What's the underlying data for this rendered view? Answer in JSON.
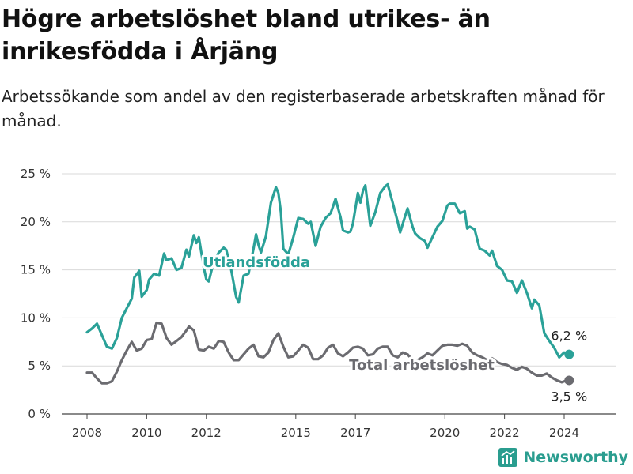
{
  "title": "Högre arbetslöshet bland utrikes- än inrikesfödda i Årjäng",
  "subtitle": "Arbetssökande som andel av den registerbaserade arbetskraften månad för månad.",
  "brand": {
    "name": "Newsworthy",
    "color": "#2a9d8f"
  },
  "chart_data": {
    "type": "line",
    "x_ticks": [
      "2008",
      "2010",
      "2012",
      "2015",
      "2017",
      "2020",
      "2022",
      "2024"
    ],
    "y_ticks": [
      "0 %",
      "5 %",
      "10 %",
      "15 %",
      "20 %",
      "25 %"
    ],
    "ylim": [
      0,
      25
    ],
    "grid": true,
    "series": [
      {
        "name": "Utlandsfödda",
        "color": "#2aa198",
        "end_label": "6,2 %",
        "points": [
          [
            "2008-01",
            8.5
          ],
          [
            "2008-03",
            8.9
          ],
          [
            "2008-05",
            9.4
          ],
          [
            "2008-07",
            8.2
          ],
          [
            "2008-09",
            7.0
          ],
          [
            "2008-11",
            6.8
          ],
          [
            "2009-01",
            7.9
          ],
          [
            "2009-03",
            10.0
          ],
          [
            "2009-05",
            11.0
          ],
          [
            "2009-07",
            12.0
          ],
          [
            "2009-08",
            14.2
          ],
          [
            "2009-10",
            14.9
          ],
          [
            "2009-11",
            12.2
          ],
          [
            "2010-01",
            12.9
          ],
          [
            "2010-02",
            14.0
          ],
          [
            "2010-04",
            14.6
          ],
          [
            "2010-06",
            14.4
          ],
          [
            "2010-08",
            16.7
          ],
          [
            "2010-09",
            16.0
          ],
          [
            "2010-11",
            16.2
          ],
          [
            "2011-01",
            15.0
          ],
          [
            "2011-03",
            15.2
          ],
          [
            "2011-05",
            17.1
          ],
          [
            "2011-06",
            16.4
          ],
          [
            "2011-08",
            18.6
          ],
          [
            "2011-09",
            17.8
          ],
          [
            "2011-10",
            18.4
          ],
          [
            "2011-12",
            15.2
          ],
          [
            "2012-01",
            14.0
          ],
          [
            "2012-02",
            13.8
          ],
          [
            "2012-04",
            15.9
          ],
          [
            "2012-06",
            16.8
          ],
          [
            "2012-08",
            17.3
          ],
          [
            "2012-09",
            17.1
          ],
          [
            "2012-11",
            15.0
          ],
          [
            "2013-01",
            12.2
          ],
          [
            "2013-02",
            11.6
          ],
          [
            "2013-04",
            14.4
          ],
          [
            "2013-06",
            14.6
          ],
          [
            "2013-08",
            17.2
          ],
          [
            "2013-09",
            18.7
          ],
          [
            "2013-10",
            17.6
          ],
          [
            "2013-11",
            16.8
          ],
          [
            "2014-01",
            18.5
          ],
          [
            "2014-03",
            22.0
          ],
          [
            "2014-05",
            23.6
          ],
          [
            "2014-06",
            23.0
          ],
          [
            "2014-07",
            21.0
          ],
          [
            "2014-08",
            17.2
          ],
          [
            "2014-10",
            16.6
          ],
          [
            "2014-12",
            18.4
          ],
          [
            "2015-02",
            20.4
          ],
          [
            "2015-04",
            20.3
          ],
          [
            "2015-06",
            19.8
          ],
          [
            "2015-07",
            20.0
          ],
          [
            "2015-09",
            17.5
          ],
          [
            "2015-11",
            19.5
          ],
          [
            "2016-01",
            20.4
          ],
          [
            "2016-03",
            20.9
          ],
          [
            "2016-04",
            21.6
          ],
          [
            "2016-05",
            22.4
          ],
          [
            "2016-07",
            20.5
          ],
          [
            "2016-08",
            19.1
          ],
          [
            "2016-10",
            18.9
          ],
          [
            "2016-11",
            19.0
          ],
          [
            "2016-12",
            19.8
          ],
          [
            "2017-02",
            23.0
          ],
          [
            "2017-03",
            22.0
          ],
          [
            "2017-04",
            23.2
          ],
          [
            "2017-05",
            23.8
          ],
          [
            "2017-07",
            19.6
          ],
          [
            "2017-09",
            21.0
          ],
          [
            "2017-11",
            23.0
          ],
          [
            "2018-01",
            23.7
          ],
          [
            "2018-02",
            23.9
          ],
          [
            "2018-04",
            22.0
          ],
          [
            "2018-06",
            20.0
          ],
          [
            "2018-07",
            18.9
          ],
          [
            "2018-09",
            20.6
          ],
          [
            "2018-10",
            21.4
          ],
          [
            "2018-12",
            19.5
          ],
          [
            "2019-01",
            18.8
          ],
          [
            "2019-03",
            18.3
          ],
          [
            "2019-05",
            18.0
          ],
          [
            "2019-06",
            17.3
          ],
          [
            "2019-08",
            18.4
          ],
          [
            "2019-10",
            19.5
          ],
          [
            "2019-12",
            20.1
          ],
          [
            "2020-02",
            21.7
          ],
          [
            "2020-03",
            21.9
          ],
          [
            "2020-05",
            21.9
          ],
          [
            "2020-07",
            20.9
          ],
          [
            "2020-09",
            21.1
          ],
          [
            "2020-10",
            19.3
          ],
          [
            "2020-11",
            19.5
          ],
          [
            "2021-01",
            19.2
          ],
          [
            "2021-03",
            17.2
          ],
          [
            "2021-05",
            17.0
          ],
          [
            "2021-07",
            16.5
          ],
          [
            "2021-08",
            17.0
          ],
          [
            "2021-10",
            15.4
          ],
          [
            "2021-12",
            15.0
          ],
          [
            "2022-02",
            13.9
          ],
          [
            "2022-04",
            13.8
          ],
          [
            "2022-06",
            12.6
          ],
          [
            "2022-08",
            13.9
          ],
          [
            "2022-10",
            12.6
          ],
          [
            "2022-12",
            11.0
          ],
          [
            "2023-01",
            11.9
          ],
          [
            "2023-03",
            11.3
          ],
          [
            "2023-05",
            8.4
          ],
          [
            "2023-07",
            7.6
          ],
          [
            "2023-09",
            6.9
          ],
          [
            "2023-11",
            5.9
          ],
          [
            "2024-01",
            6.4
          ],
          [
            "2024-03",
            6.2
          ]
        ]
      },
      {
        "name": "Total arbetslöshet",
        "color": "#6b6b70",
        "end_label": "3,5 %",
        "points": [
          [
            "2008-01",
            4.3
          ],
          [
            "2008-03",
            4.3
          ],
          [
            "2008-05",
            3.7
          ],
          [
            "2008-07",
            3.2
          ],
          [
            "2008-09",
            3.2
          ],
          [
            "2008-11",
            3.4
          ],
          [
            "2009-01",
            4.4
          ],
          [
            "2009-03",
            5.6
          ],
          [
            "2009-05",
            6.6
          ],
          [
            "2009-07",
            7.5
          ],
          [
            "2009-09",
            6.6
          ],
          [
            "2009-11",
            6.8
          ],
          [
            "2010-01",
            7.7
          ],
          [
            "2010-03",
            7.8
          ],
          [
            "2010-05",
            9.5
          ],
          [
            "2010-07",
            9.4
          ],
          [
            "2010-09",
            7.9
          ],
          [
            "2010-11",
            7.2
          ],
          [
            "2011-01",
            7.6
          ],
          [
            "2011-03",
            8.0
          ],
          [
            "2011-05",
            8.7
          ],
          [
            "2011-06",
            9.1
          ],
          [
            "2011-08",
            8.7
          ],
          [
            "2011-10",
            6.7
          ],
          [
            "2011-12",
            6.6
          ],
          [
            "2012-02",
            7.0
          ],
          [
            "2012-04",
            6.8
          ],
          [
            "2012-06",
            7.6
          ],
          [
            "2012-08",
            7.5
          ],
          [
            "2012-10",
            6.4
          ],
          [
            "2012-12",
            5.6
          ],
          [
            "2013-02",
            5.6
          ],
          [
            "2013-04",
            6.2
          ],
          [
            "2013-06",
            6.8
          ],
          [
            "2013-08",
            7.2
          ],
          [
            "2013-10",
            6.0
          ],
          [
            "2013-12",
            5.9
          ],
          [
            "2014-02",
            6.4
          ],
          [
            "2014-04",
            7.7
          ],
          [
            "2014-06",
            8.4
          ],
          [
            "2014-08",
            7.0
          ],
          [
            "2014-10",
            5.9
          ],
          [
            "2014-12",
            6.0
          ],
          [
            "2015-02",
            6.6
          ],
          [
            "2015-04",
            7.2
          ],
          [
            "2015-06",
            6.9
          ],
          [
            "2015-08",
            5.7
          ],
          [
            "2015-10",
            5.7
          ],
          [
            "2015-12",
            6.1
          ],
          [
            "2016-02",
            6.9
          ],
          [
            "2016-04",
            7.2
          ],
          [
            "2016-06",
            6.3
          ],
          [
            "2016-08",
            6.0
          ],
          [
            "2016-10",
            6.4
          ],
          [
            "2016-12",
            6.9
          ],
          [
            "2017-02",
            7.0
          ],
          [
            "2017-04",
            6.8
          ],
          [
            "2017-06",
            6.1
          ],
          [
            "2017-08",
            6.2
          ],
          [
            "2017-10",
            6.8
          ],
          [
            "2017-12",
            7.0
          ],
          [
            "2018-02",
            7.0
          ],
          [
            "2018-04",
            6.1
          ],
          [
            "2018-06",
            5.9
          ],
          [
            "2018-08",
            6.4
          ],
          [
            "2018-10",
            6.2
          ],
          [
            "2018-12",
            5.6
          ],
          [
            "2019-02",
            5.6
          ],
          [
            "2019-04",
            5.9
          ],
          [
            "2019-06",
            6.3
          ],
          [
            "2019-08",
            6.1
          ],
          [
            "2019-10",
            6.6
          ],
          [
            "2019-12",
            7.1
          ],
          [
            "2020-02",
            7.2
          ],
          [
            "2020-04",
            7.2
          ],
          [
            "2020-06",
            7.1
          ],
          [
            "2020-08",
            7.3
          ],
          [
            "2020-10",
            7.1
          ],
          [
            "2020-12",
            6.4
          ],
          [
            "2021-02",
            6.1
          ],
          [
            "2021-04",
            5.9
          ],
          [
            "2021-06",
            5.6
          ],
          [
            "2021-08",
            5.8
          ],
          [
            "2021-10",
            5.4
          ],
          [
            "2021-12",
            5.2
          ],
          [
            "2022-02",
            5.1
          ],
          [
            "2022-04",
            4.8
          ],
          [
            "2022-06",
            4.6
          ],
          [
            "2022-08",
            4.9
          ],
          [
            "2022-10",
            4.7
          ],
          [
            "2022-12",
            4.3
          ],
          [
            "2023-02",
            4.0
          ],
          [
            "2023-04",
            4.0
          ],
          [
            "2023-06",
            4.2
          ],
          [
            "2023-08",
            3.8
          ],
          [
            "2023-10",
            3.5
          ],
          [
            "2023-12",
            3.3
          ],
          [
            "2024-01",
            3.4
          ],
          [
            "2024-03",
            3.5
          ]
        ]
      }
    ]
  }
}
